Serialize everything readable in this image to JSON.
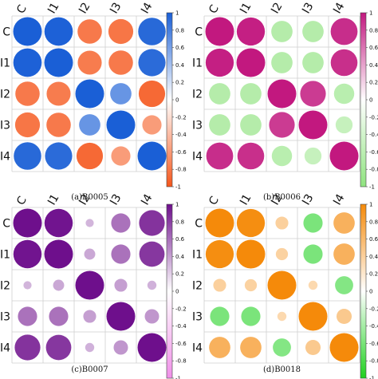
{
  "chart_data": [
    {
      "type": "heatmap",
      "style": "circle-correlogram",
      "caption": "(a)B0005",
      "labels": [
        "C",
        "I1",
        "I2",
        "I3",
        "I4"
      ],
      "matrix": [
        [
          1.0,
          0.98,
          -0.72,
          -0.75,
          0.92
        ],
        [
          0.98,
          1.0,
          -0.7,
          -0.72,
          0.9
        ],
        [
          -0.72,
          -0.7,
          1.0,
          0.55,
          -0.85
        ],
        [
          -0.75,
          -0.72,
          0.55,
          1.0,
          -0.45
        ],
        [
          0.92,
          0.9,
          -0.85,
          -0.45,
          1.0
        ]
      ],
      "colorbar": {
        "range": [
          -1,
          1
        ],
        "ticks": [
          "1",
          "0.8",
          "0.6",
          "0.4",
          "0.2",
          "0",
          "-0.2",
          "-0.4",
          "-0.6",
          "-0.8",
          "-1"
        ],
        "positive_color": "#1a5fd6",
        "negative_color": "#f5561b"
      }
    },
    {
      "type": "heatmap",
      "style": "circle-correlogram",
      "caption": "(b)B0006",
      "labels": [
        "C",
        "I1",
        "I2",
        "I3",
        "I4"
      ],
      "matrix": [
        [
          1.0,
          0.96,
          -0.55,
          -0.55,
          0.88
        ],
        [
          0.96,
          1.0,
          -0.55,
          -0.55,
          0.87
        ],
        [
          -0.55,
          -0.55,
          1.0,
          0.8,
          -0.5
        ],
        [
          -0.55,
          -0.55,
          0.8,
          1.0,
          -0.35
        ],
        [
          0.88,
          0.87,
          -0.5,
          -0.35,
          1.0
        ]
      ],
      "colorbar": {
        "range": [
          -1,
          1
        ],
        "ticks": [
          "1",
          "0.8",
          "0.6",
          "0.4",
          "0.2",
          "0",
          "-0.2",
          "-0.4",
          "-0.6",
          "-0.8",
          "-1"
        ],
        "positive_color": "#c2187f",
        "negative_color": "#8fe37f"
      }
    },
    {
      "type": "heatmap",
      "style": "circle-correlogram",
      "caption": "(c)B0007",
      "labels": [
        "C",
        "I1",
        "I2",
        "I3",
        "I4"
      ],
      "matrix": [
        [
          1.0,
          0.97,
          0.08,
          0.45,
          0.8
        ],
        [
          0.97,
          1.0,
          0.15,
          0.45,
          0.78
        ],
        [
          0.08,
          0.15,
          1.0,
          0.2,
          0.1
        ],
        [
          0.45,
          0.45,
          0.2,
          1.0,
          0.25
        ],
        [
          0.8,
          0.78,
          0.1,
          0.25,
          1.0
        ]
      ],
      "colorbar": {
        "range": [
          -1,
          1
        ],
        "ticks": [
          "1",
          "0.8",
          "0.6",
          "0.4",
          "0.2",
          "0",
          "-0.2",
          "-0.4",
          "-0.6",
          "-0.8",
          "-1"
        ],
        "positive_color": "#6e0f8c",
        "negative_color": "#f08fe8"
      }
    },
    {
      "type": "heatmap",
      "style": "circle-correlogram",
      "caption": "(d)B0018",
      "labels": [
        "C",
        "I1",
        "I2",
        "I3",
        "I4"
      ],
      "matrix": [
        [
          1.0,
          0.96,
          0.2,
          -0.45,
          0.55
        ],
        [
          0.96,
          1.0,
          0.18,
          -0.45,
          0.55
        ],
        [
          0.2,
          0.18,
          1.0,
          0.1,
          -0.4
        ],
        [
          -0.45,
          -0.45,
          0.1,
          1.0,
          0.28
        ],
        [
          0.55,
          0.55,
          -0.4,
          0.28,
          1.0
        ]
      ],
      "colorbar": {
        "range": [
          -1,
          1
        ],
        "ticks": [
          "1",
          "0.8",
          "0.6",
          "0.4",
          "0.2",
          "0",
          "-0.2",
          "-0.4",
          "-0.6",
          "-0.8",
          "-1"
        ],
        "positive_color": "#f58a0a",
        "negative_color": "#1fd11f"
      }
    }
  ]
}
